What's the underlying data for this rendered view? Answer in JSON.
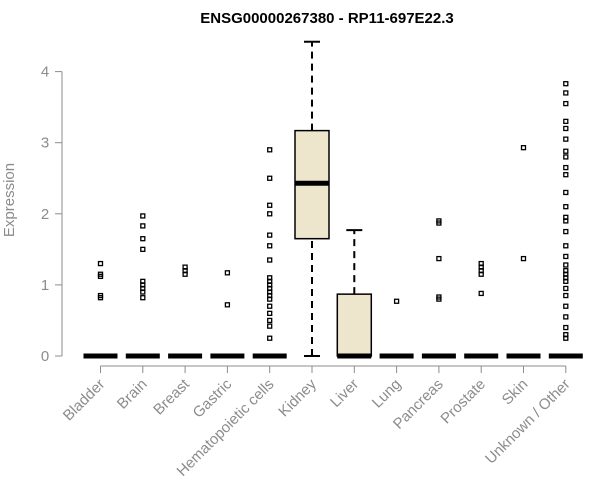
{
  "chart_data": {
    "type": "box",
    "title": "ENSG00000267380 - RP11-697E22.3",
    "ylabel": "Expression",
    "xlabel": "",
    "ylim": [
      0,
      4.2
    ],
    "yticks": [
      "0",
      "1",
      "2",
      "3",
      "4"
    ],
    "categories": [
      "Bladder",
      "Brain",
      "Breast",
      "Gastric",
      "Hematopoietic cells",
      "Kidney",
      "Liver",
      "Lung",
      "Pancreas",
      "Prostate",
      "Skin",
      "Unknown / Other"
    ],
    "boxes": [
      {
        "name": "Bladder",
        "min": 0,
        "q1": 0,
        "median": 0,
        "q3": 0,
        "max": 0,
        "outliers": [
          0.82,
          0.85,
          1.12,
          1.15,
          1.3
        ]
      },
      {
        "name": "Brain",
        "min": 0,
        "q1": 0,
        "median": 0,
        "q3": 0,
        "max": 0,
        "outliers": [
          0.82,
          0.9,
          0.95,
          1.0,
          1.05,
          1.5,
          1.65,
          1.83,
          1.97
        ]
      },
      {
        "name": "Breast",
        "min": 0,
        "q1": 0,
        "median": 0,
        "q3": 0,
        "max": 0,
        "outliers": [
          1.15,
          1.2,
          1.25
        ]
      },
      {
        "name": "Gastric",
        "min": 0,
        "q1": 0,
        "median": 0,
        "q3": 0,
        "max": 0,
        "outliers": [
          0.72,
          1.17
        ]
      },
      {
        "name": "Hematopoietic cells",
        "min": 0,
        "q1": 0,
        "median": 0,
        "q3": 0,
        "max": 0,
        "outliers": [
          0.25,
          0.42,
          0.5,
          0.6,
          0.7,
          0.8,
          0.85,
          0.9,
          0.95,
          1.0,
          1.05,
          1.1,
          1.35,
          1.55,
          1.7,
          2.0,
          2.12,
          2.5,
          2.9
        ]
      },
      {
        "name": "Kidney",
        "min": 0,
        "q1": 1.65,
        "median": 2.43,
        "q3": 3.17,
        "max": 4.42,
        "outliers": []
      },
      {
        "name": "Liver",
        "min": 0,
        "q1": 0,
        "median": 0,
        "q3": 0.87,
        "max": 1.77,
        "outliers": []
      },
      {
        "name": "Lung",
        "min": 0,
        "q1": 0,
        "median": 0,
        "q3": 0,
        "max": 0,
        "outliers": [
          0.77
        ]
      },
      {
        "name": "Pancreas",
        "min": 0,
        "q1": 0,
        "median": 0,
        "q3": 0,
        "max": 0,
        "outliers": [
          0.8,
          0.83,
          1.37,
          1.87,
          1.9
        ]
      },
      {
        "name": "Prostate",
        "min": 0,
        "q1": 0,
        "median": 0,
        "q3": 0,
        "max": 0,
        "outliers": [
          0.88,
          1.15,
          1.2,
          1.25,
          1.3
        ]
      },
      {
        "name": "Skin",
        "min": 0,
        "q1": 0,
        "median": 0,
        "q3": 0,
        "max": 0,
        "outliers": [
          1.37,
          2.93
        ]
      },
      {
        "name": "Unknown / Other",
        "min": 0,
        "q1": 0,
        "median": 0,
        "q3": 0,
        "max": 0,
        "outliers": [
          0.25,
          0.3,
          0.4,
          0.55,
          0.7,
          0.85,
          0.95,
          1.05,
          1.1,
          1.15,
          1.2,
          1.28,
          1.4,
          1.55,
          1.75,
          1.9,
          1.95,
          2.1,
          2.3,
          2.55,
          2.65,
          2.8,
          2.88,
          3.05,
          3.2,
          3.3,
          3.55,
          3.7,
          3.83
        ]
      }
    ],
    "box_color": "#ede6cc",
    "axis_color": "#8c8c8c"
  }
}
